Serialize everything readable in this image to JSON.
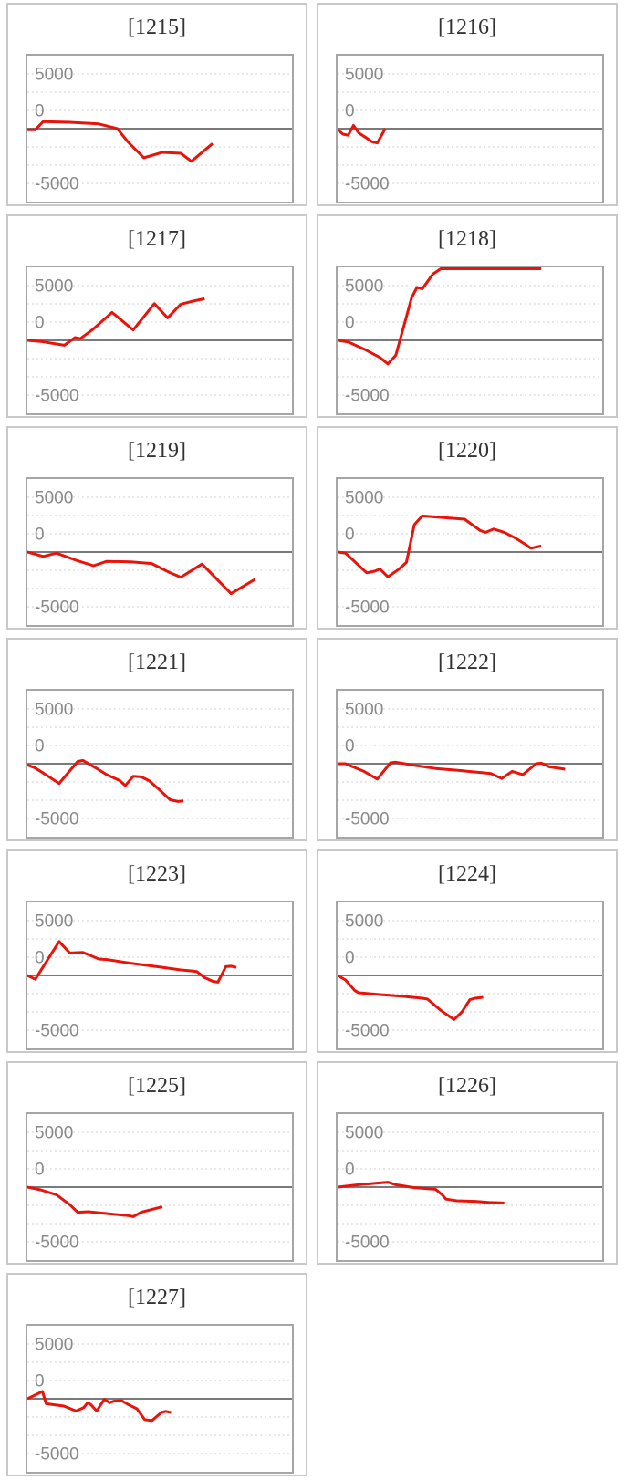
{
  "page": {
    "background": "#ffffff",
    "title_color": "#333333",
    "axis_label_color": "#8a8a8a",
    "gridline_color": "#d2d2d2",
    "zero_line_color": "#7a7a7a"
  },
  "chart_data": [
    {
      "type": "line",
      "title": "[1215]",
      "xlabel": "",
      "ylabel": "",
      "ylim": [
        -6667,
        6667
      ],
      "yticks": [
        {
          "label": "5000",
          "value": 5000
        },
        {
          "label": "0",
          "value": 0
        },
        {
          "label": "-5000",
          "value": -5000
        }
      ],
      "grid": "dotted horizontal, solid zero line",
      "legend": "none",
      "line_color": "#e8140c",
      "points": [
        [
          0,
          -100
        ],
        [
          0.03,
          -100
        ],
        [
          0.06,
          650
        ],
        [
          0.16,
          580
        ],
        [
          0.27,
          430
        ],
        [
          0.34,
          0
        ],
        [
          0.38,
          -1200
        ],
        [
          0.44,
          -2660
        ],
        [
          0.51,
          -2170
        ],
        [
          0.58,
          -2250
        ],
        [
          0.62,
          -2980
        ],
        [
          0.7,
          -1360
        ]
      ]
    },
    {
      "type": "line",
      "title": "[1216]",
      "xlabel": "",
      "ylabel": "",
      "ylim": [
        -6667,
        6667
      ],
      "yticks": [
        {
          "label": "5000",
          "value": 5000
        },
        {
          "label": "0",
          "value": 0
        },
        {
          "label": "-5000",
          "value": -5000
        }
      ],
      "grid": "dotted horizontal, solid zero line",
      "legend": "none",
      "line_color": "#e8140c",
      "points": [
        [
          0,
          -100
        ],
        [
          0.02,
          -500
        ],
        [
          0.04,
          -600
        ],
        [
          0.06,
          300
        ],
        [
          0.08,
          -400
        ],
        [
          0.1,
          -700
        ],
        [
          0.13,
          -1200
        ],
        [
          0.15,
          -1300
        ],
        [
          0.18,
          0
        ]
      ]
    },
    {
      "type": "line",
      "title": "[1217]",
      "xlabel": "",
      "ylabel": "",
      "ylim": [
        -6667,
        6667
      ],
      "yticks": [
        {
          "label": "5000",
          "value": 5000
        },
        {
          "label": "0",
          "value": 0
        },
        {
          "label": "-5000",
          "value": -5000
        }
      ],
      "grid": "dotted horizontal, solid zero line",
      "legend": "none",
      "line_color": "#e8140c",
      "points": [
        [
          0,
          0
        ],
        [
          0.05,
          -100
        ],
        [
          0.14,
          -450
        ],
        [
          0.18,
          250
        ],
        [
          0.2,
          150
        ],
        [
          0.25,
          1050
        ],
        [
          0.32,
          2550
        ],
        [
          0.4,
          950
        ],
        [
          0.48,
          3350
        ],
        [
          0.53,
          2050
        ],
        [
          0.58,
          3300
        ],
        [
          0.62,
          3550
        ],
        [
          0.67,
          3800
        ]
      ]
    },
    {
      "type": "line",
      "title": "[1218]",
      "xlabel": "",
      "ylabel": "",
      "ylim": [
        -6667,
        6667
      ],
      "yticks": [
        {
          "label": "5000",
          "value": 5000
        },
        {
          "label": "0",
          "value": 0
        },
        {
          "label": "-5000",
          "value": -5000
        }
      ],
      "grid": "dotted horizontal, solid zero line",
      "legend": "none",
      "line_color": "#e8140c",
      "points": [
        [
          0,
          0
        ],
        [
          0.04,
          -150
        ],
        [
          0.1,
          -800
        ],
        [
          0.16,
          -1570
        ],
        [
          0.19,
          -2150
        ],
        [
          0.22,
          -1370
        ],
        [
          0.28,
          3900
        ],
        [
          0.3,
          4830
        ],
        [
          0.32,
          4700
        ],
        [
          0.36,
          6050
        ],
        [
          0.39,
          6600
        ],
        [
          0.77,
          6600
        ]
      ]
    },
    {
      "type": "line",
      "title": "[1219]",
      "xlabel": "",
      "ylabel": "",
      "ylim": [
        -6667,
        6667
      ],
      "yticks": [
        {
          "label": "5000",
          "value": 5000
        },
        {
          "label": "0",
          "value": 0
        },
        {
          "label": "-5000",
          "value": -5000
        }
      ],
      "grid": "dotted horizontal, solid zero line",
      "legend": "none",
      "line_color": "#e8140c",
      "points": [
        [
          0,
          0
        ],
        [
          0.06,
          -400
        ],
        [
          0.11,
          -100
        ],
        [
          0.19,
          -800
        ],
        [
          0.25,
          -1250
        ],
        [
          0.3,
          -850
        ],
        [
          0.39,
          -900
        ],
        [
          0.47,
          -1050
        ],
        [
          0.54,
          -1900
        ],
        [
          0.58,
          -2300
        ],
        [
          0.66,
          -1100
        ],
        [
          0.77,
          -3800
        ],
        [
          0.86,
          -2500
        ]
      ]
    },
    {
      "type": "line",
      "title": "[1220]",
      "xlabel": "",
      "ylabel": "",
      "ylim": [
        -6667,
        6667
      ],
      "yticks": [
        {
          "label": "5000",
          "value": 5000
        },
        {
          "label": "0",
          "value": 0
        },
        {
          "label": "-5000",
          "value": -5000
        }
      ],
      "grid": "dotted horizontal, solid zero line",
      "legend": "none",
      "line_color": "#e8140c",
      "points": [
        [
          0,
          0
        ],
        [
          0.03,
          -100
        ],
        [
          0.11,
          -1900
        ],
        [
          0.14,
          -1750
        ],
        [
          0.16,
          -1550
        ],
        [
          0.19,
          -2270
        ],
        [
          0.23,
          -1600
        ],
        [
          0.26,
          -950
        ],
        [
          0.29,
          2500
        ],
        [
          0.32,
          3300
        ],
        [
          0.4,
          3150
        ],
        [
          0.48,
          3000
        ],
        [
          0.54,
          1950
        ],
        [
          0.56,
          1800
        ],
        [
          0.59,
          2100
        ],
        [
          0.63,
          1800
        ],
        [
          0.67,
          1300
        ],
        [
          0.71,
          700
        ],
        [
          0.73,
          350
        ],
        [
          0.77,
          550
        ]
      ]
    },
    {
      "type": "line",
      "title": "[1221]",
      "xlabel": "",
      "ylabel": "",
      "ylim": [
        -6667,
        6667
      ],
      "yticks": [
        {
          "label": "5000",
          "value": 5000
        },
        {
          "label": "0",
          "value": 0
        },
        {
          "label": "-5000",
          "value": -5000
        }
      ],
      "grid": "dotted horizontal, solid zero line",
      "legend": "none",
      "line_color": "#e8140c",
      "points": [
        [
          0,
          -100
        ],
        [
          0.03,
          -400
        ],
        [
          0.06,
          -850
        ],
        [
          0.12,
          -1800
        ],
        [
          0.19,
          200
        ],
        [
          0.21,
          300
        ],
        [
          0.27,
          -550
        ],
        [
          0.3,
          -1000
        ],
        [
          0.35,
          -1550
        ],
        [
          0.37,
          -2000
        ],
        [
          0.4,
          -1150
        ],
        [
          0.43,
          -1200
        ],
        [
          0.46,
          -1550
        ],
        [
          0.5,
          -2400
        ],
        [
          0.54,
          -3300
        ],
        [
          0.57,
          -3450
        ],
        [
          0.59,
          -3400
        ]
      ]
    },
    {
      "type": "line",
      "title": "[1222]",
      "xlabel": "",
      "ylabel": "",
      "ylim": [
        -6667,
        6667
      ],
      "yticks": [
        {
          "label": "5000",
          "value": 5000
        },
        {
          "label": "0",
          "value": 0
        },
        {
          "label": "-5000",
          "value": -5000
        }
      ],
      "grid": "dotted horizontal, solid zero line",
      "legend": "none",
      "line_color": "#e8140c",
      "points": [
        [
          0,
          0
        ],
        [
          0.03,
          0
        ],
        [
          0.1,
          -700
        ],
        [
          0.15,
          -1400
        ],
        [
          0.2,
          80
        ],
        [
          0.22,
          140
        ],
        [
          0.29,
          -150
        ],
        [
          0.37,
          -430
        ],
        [
          0.46,
          -620
        ],
        [
          0.54,
          -800
        ],
        [
          0.58,
          -900
        ],
        [
          0.62,
          -1350
        ],
        [
          0.66,
          -700
        ],
        [
          0.68,
          -850
        ],
        [
          0.7,
          -1000
        ],
        [
          0.75,
          0
        ],
        [
          0.77,
          50
        ],
        [
          0.8,
          -280
        ],
        [
          0.86,
          -500
        ]
      ]
    },
    {
      "type": "line",
      "title": "[1223]",
      "xlabel": "",
      "ylabel": "",
      "ylim": [
        -6667,
        6667
      ],
      "yticks": [
        {
          "label": "5000",
          "value": 5000
        },
        {
          "label": "0",
          "value": 0
        },
        {
          "label": "-5000",
          "value": -5000
        }
      ],
      "grid": "dotted horizontal, solid zero line",
      "legend": "none",
      "line_color": "#e8140c",
      "points": [
        [
          0,
          0
        ],
        [
          0.03,
          -350
        ],
        [
          0.12,
          3100
        ],
        [
          0.16,
          2050
        ],
        [
          0.21,
          2100
        ],
        [
          0.27,
          1500
        ],
        [
          0.3,
          1450
        ],
        [
          0.39,
          1120
        ],
        [
          0.49,
          800
        ],
        [
          0.58,
          500
        ],
        [
          0.61,
          430
        ],
        [
          0.64,
          360
        ],
        [
          0.67,
          -200
        ],
        [
          0.7,
          -530
        ],
        [
          0.72,
          -620
        ],
        [
          0.75,
          800
        ],
        [
          0.77,
          840
        ],
        [
          0.79,
          730
        ]
      ]
    },
    {
      "type": "line",
      "title": "[1224]",
      "xlabel": "",
      "ylabel": "",
      "ylim": [
        -6667,
        6667
      ],
      "yticks": [
        {
          "label": "5000",
          "value": 5000
        },
        {
          "label": "0",
          "value": 0
        },
        {
          "label": "-5000",
          "value": -5000
        }
      ],
      "grid": "dotted horizontal, solid zero line",
      "legend": "none",
      "line_color": "#e8140c",
      "points": [
        [
          0,
          0
        ],
        [
          0.03,
          -420
        ],
        [
          0.065,
          -1390
        ],
        [
          0.08,
          -1580
        ],
        [
          0.16,
          -1750
        ],
        [
          0.24,
          -1890
        ],
        [
          0.32,
          -2080
        ],
        [
          0.34,
          -2170
        ],
        [
          0.39,
          -3200
        ],
        [
          0.44,
          -4030
        ],
        [
          0.47,
          -3330
        ],
        [
          0.5,
          -2220
        ],
        [
          0.52,
          -2080
        ],
        [
          0.55,
          -2000
        ]
      ]
    },
    {
      "type": "line",
      "title": "[1225]",
      "xlabel": "",
      "ylabel": "",
      "ylim": [
        -6667,
        6667
      ],
      "yticks": [
        {
          "label": "5000",
          "value": 5000
        },
        {
          "label": "0",
          "value": 0
        },
        {
          "label": "-5000",
          "value": -5000
        }
      ],
      "grid": "dotted horizontal, solid zero line",
      "legend": "none",
      "line_color": "#e8140c",
      "points": [
        [
          0,
          0
        ],
        [
          0.05,
          -250
        ],
        [
          0.11,
          -700
        ],
        [
          0.16,
          -1600
        ],
        [
          0.19,
          -2300
        ],
        [
          0.23,
          -2250
        ],
        [
          0.29,
          -2400
        ],
        [
          0.38,
          -2600
        ],
        [
          0.4,
          -2700
        ],
        [
          0.43,
          -2300
        ],
        [
          0.51,
          -1800
        ]
      ]
    },
    {
      "type": "line",
      "title": "[1226]",
      "xlabel": "",
      "ylabel": "",
      "ylim": [
        -6667,
        6667
      ],
      "yticks": [
        {
          "label": "5000",
          "value": 5000
        },
        {
          "label": "0",
          "value": 0
        },
        {
          "label": "-5000",
          "value": -5000
        }
      ],
      "grid": "dotted horizontal, solid zero line",
      "legend": "none",
      "line_color": "#e8140c",
      "points": [
        [
          0,
          0
        ],
        [
          0.08,
          220
        ],
        [
          0.19,
          450
        ],
        [
          0.22,
          220
        ],
        [
          0.29,
          -50
        ],
        [
          0.37,
          -200
        ],
        [
          0.395,
          -700
        ],
        [
          0.41,
          -1100
        ],
        [
          0.45,
          -1250
        ],
        [
          0.52,
          -1300
        ],
        [
          0.57,
          -1400
        ],
        [
          0.63,
          -1450
        ]
      ]
    },
    {
      "type": "line",
      "title": "[1227]",
      "xlabel": "",
      "ylabel": "",
      "ylim": [
        -6667,
        6667
      ],
      "yticks": [
        {
          "label": "5000",
          "value": 5000
        },
        {
          "label": "0",
          "value": 0
        },
        {
          "label": "-5000",
          "value": -5000
        }
      ],
      "grid": "dotted horizontal, solid zero line",
      "legend": "none",
      "line_color": "#e8140c",
      "points": [
        [
          0,
          0
        ],
        [
          0.057,
          670
        ],
        [
          0.071,
          -450
        ],
        [
          0.138,
          -670
        ],
        [
          0.184,
          -1120
        ],
        [
          0.213,
          -810
        ],
        [
          0.228,
          -360
        ],
        [
          0.241,
          -560
        ],
        [
          0.262,
          -1120
        ],
        [
          0.291,
          -30
        ],
        [
          0.31,
          -360
        ],
        [
          0.328,
          -220
        ],
        [
          0.356,
          -170
        ],
        [
          0.379,
          -500
        ],
        [
          0.414,
          -920
        ],
        [
          0.443,
          -1900
        ],
        [
          0.471,
          -1990
        ],
        [
          0.506,
          -1260
        ],
        [
          0.523,
          -1150
        ],
        [
          0.543,
          -1260
        ]
      ]
    }
  ]
}
